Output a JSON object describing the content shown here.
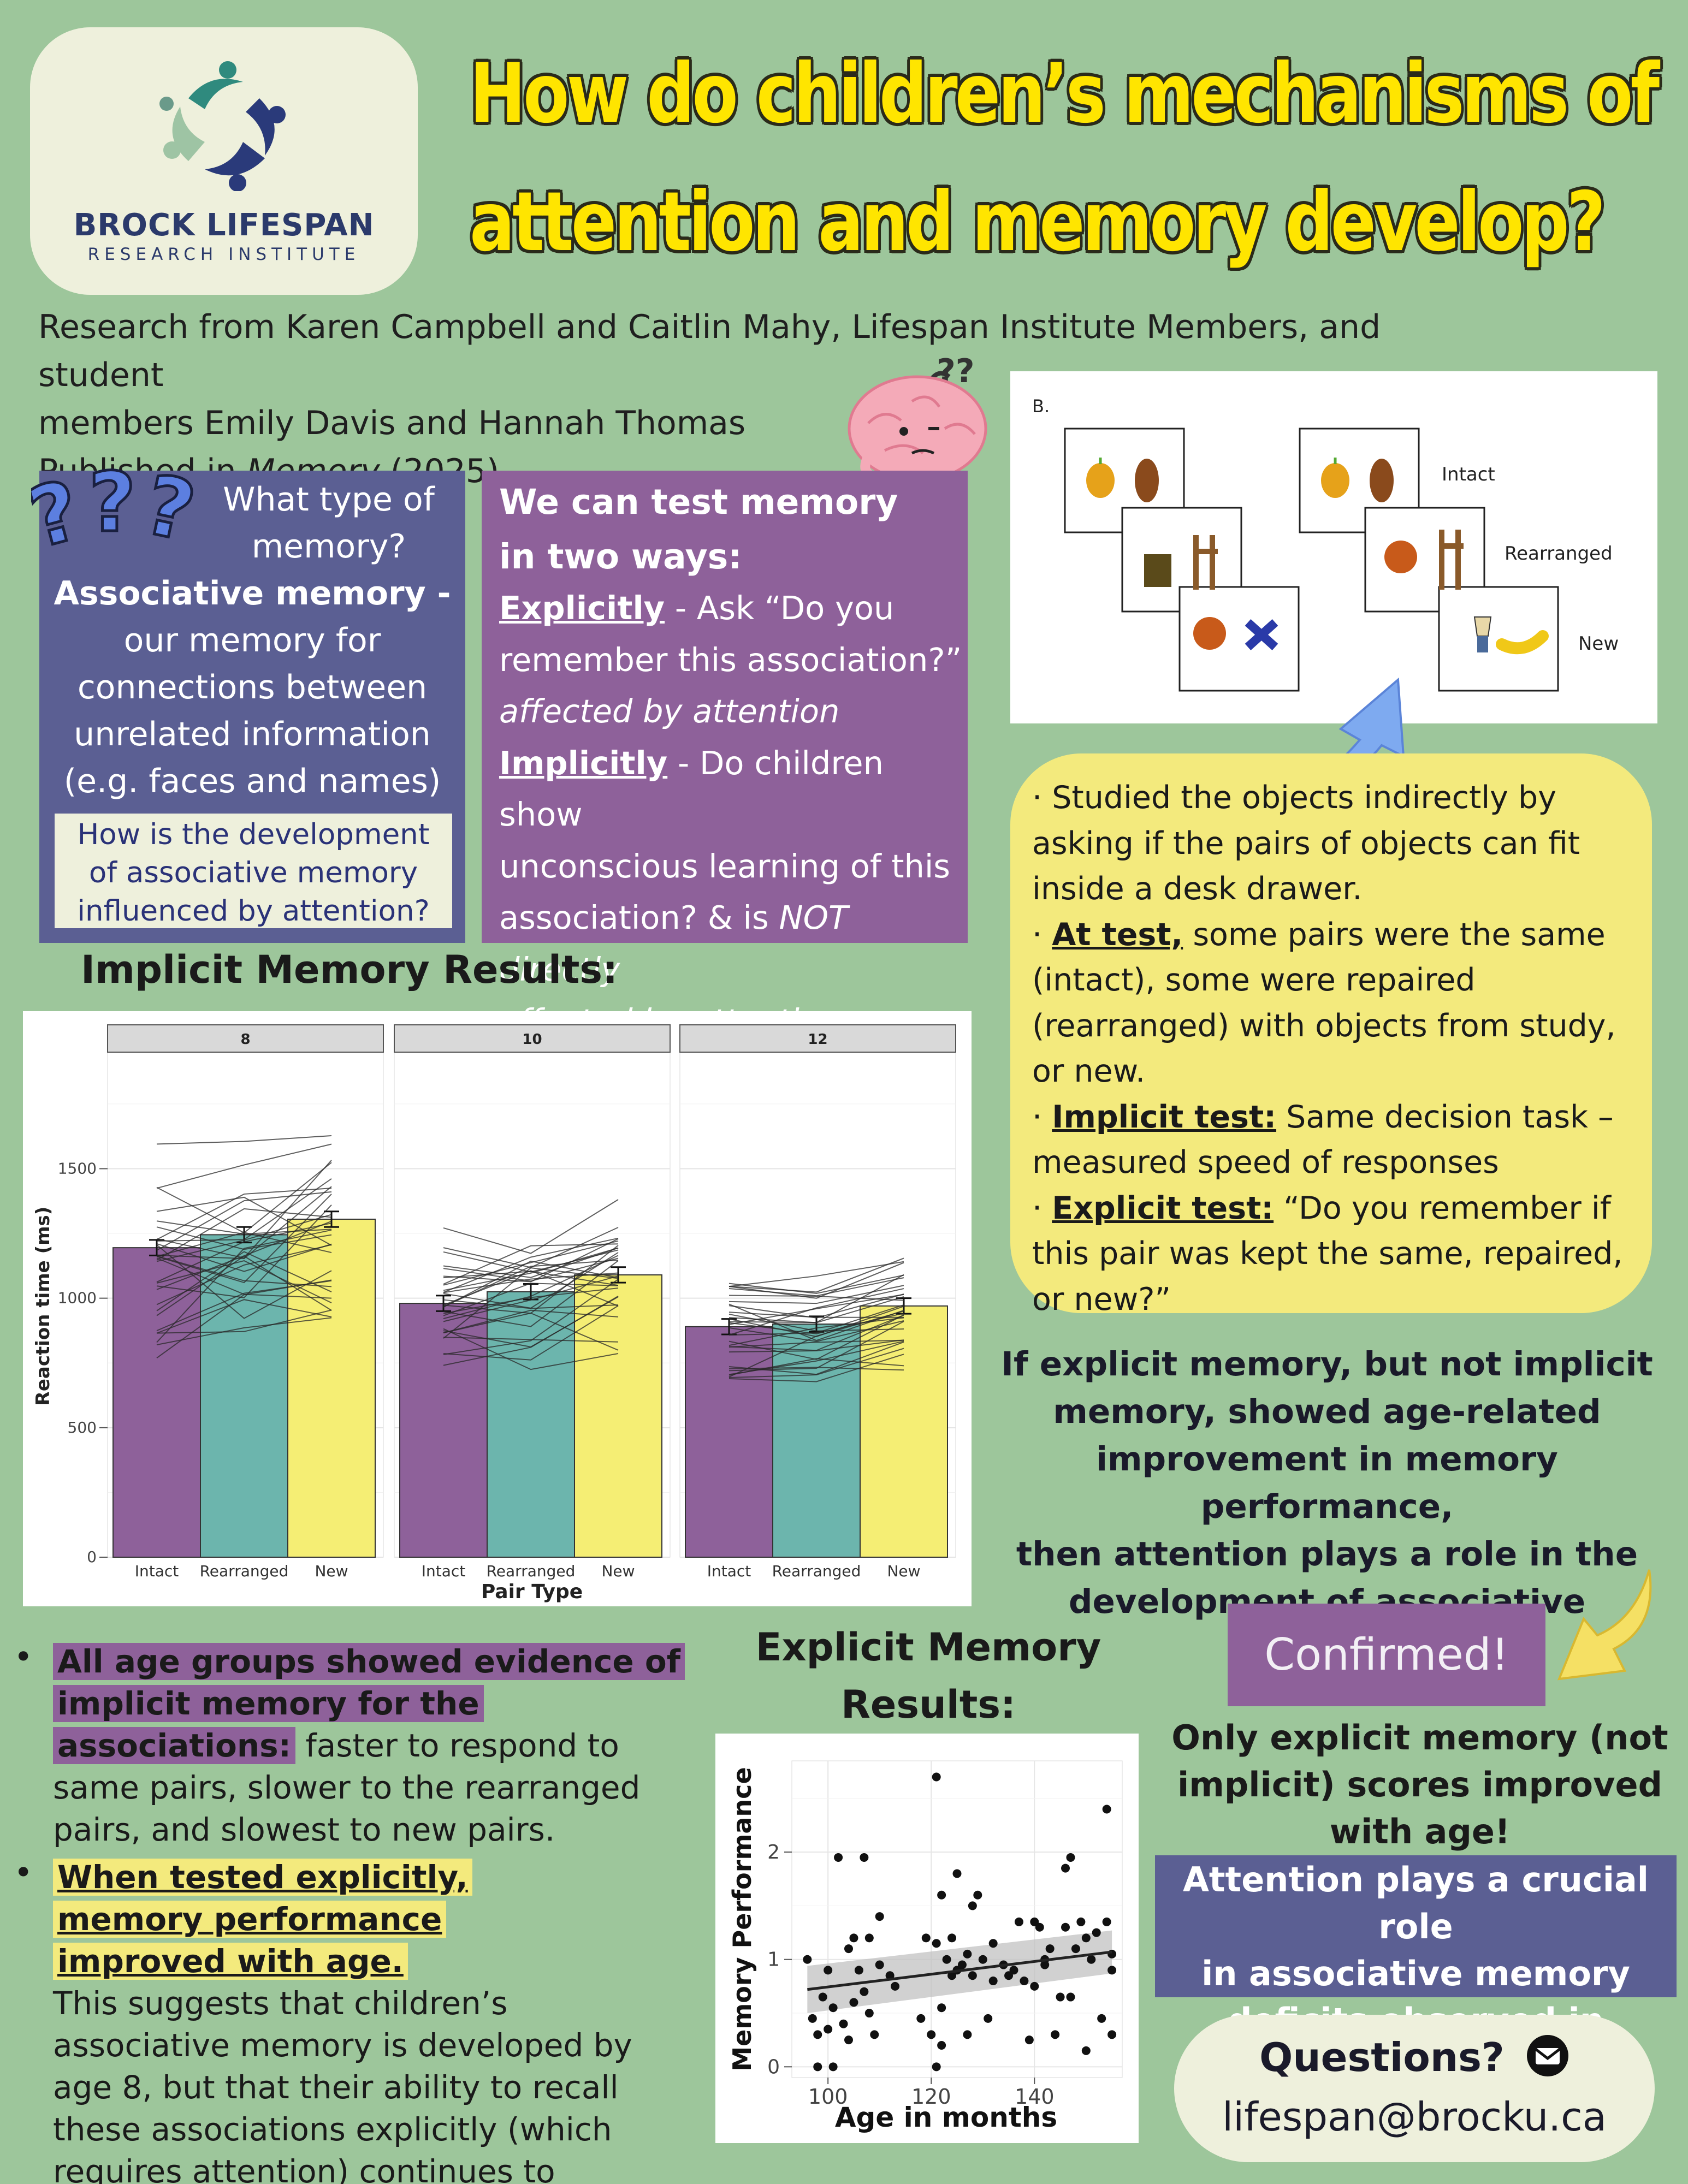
{
  "header": {
    "logo_name": "BROCK LIFESPAN",
    "logo_sub": "RESEARCH INSTITUTE",
    "title_line1": "How do children’s mechanisms of",
    "title_line2": "attention and memory develop?"
  },
  "byline": {
    "line1": "Research from Karen Campbell and Caitlin Mahy, Lifespan Institute Members, and student",
    "line2": "members Emily Davis and Hannah Thomas",
    "published_prefix": "Published in ",
    "journal": "Memory",
    "published_suffix": " (2025)"
  },
  "memory_type_box": {
    "question_line1": "What type of",
    "question_line2": "memory?",
    "term": "Associative memory -",
    "def_line1": "our memory for",
    "def_line2": "connections between",
    "def_line3": "unrelated information",
    "def_line4": "(e.g. faces and names)",
    "inner_q_line1": "How is the development",
    "inner_q_line2": "of associative memory",
    "inner_q_line3": "influenced by attention?"
  },
  "test_box": {
    "heading_line1": "We can test memory",
    "heading_line2": "in two ways:",
    "explicit_label": "Explicitly",
    "explicit_text1": " - Ask “Do you",
    "explicit_text2": "remember this association?”",
    "explicit_note": "affected by attention",
    "implicit_label": "Implicitly",
    "implicit_text1": " - Do children show",
    "implicit_text2": "unconscious learning of this",
    "implicit_text3": "association? & is ",
    "implicit_not": "NOT directly",
    "implicit_note": "affected by attention."
  },
  "experiment_figure": {
    "panel_label": "B.",
    "row_intact": "Intact",
    "row_rearranged": "Rearranged",
    "row_new": "New"
  },
  "method_box": {
    "p1": "· Studied the objects indirectly by asking if the pairs of objects can fit inside a desk drawer.",
    "p2_prefix": "· ",
    "p2_label": "At test,",
    "p2_text": " some pairs were the same (intact), some were repaired (rearranged) with objects from study, or new.",
    "p3_prefix": "· ",
    "p3_label": "Implicit test:",
    "p3_text": " Same decision task – measured speed of responses",
    "p4_prefix": "· ",
    "p4_label": "Explicit test:",
    "p4_text": " “Do you remember if this pair was kept the same, repaired, or new?”"
  },
  "hypothesis": {
    "line1": "If explicit memory, but not implicit",
    "line2": "memory, showed age-related",
    "line3": "improvement in memory performance,",
    "line4": "then attention plays a role in the",
    "line5": "development of associative memory."
  },
  "implicit_heading": "Implicit Memory Results:",
  "explicit_heading_line1": "Explicit Memory",
  "explicit_heading_line2": "Results:",
  "bullets": {
    "b1_highlight": "All age groups showed evidence of implicit memory for the associations:",
    "b1_text": " faster to respond to same pairs, slower to the rearranged pairs, and slowest to new pairs.",
    "b2_highlight": "When tested explicitly, memory performance improved with age.",
    "b2_text": "This suggests that children’s associative memory is developed by age 8, but that their ability to recall these associations explicitly (which requires attention) continues to develop."
  },
  "confirmed": "Confirmed!",
  "only_explicit": {
    "line1": "Only explicit memory (not",
    "line2": "implicit) scores improved",
    "line3": "with age!"
  },
  "attention_box": {
    "line1": "Attention plays a crucial role",
    "line2": "in associative memory",
    "line3": "deficits observed in children"
  },
  "questions": {
    "label": "Questions?",
    "email": "lifespan@brocku.ca"
  },
  "colors": {
    "background": "#9dc69b",
    "title_yellow": "#ffe500",
    "intact": "#8e619a",
    "rearranged": "#6cb5ad",
    "new": "#f5ee74",
    "blue_box": "#5b5f93",
    "purple_box": "#8e619a",
    "yellow_box": "#f3ea7d"
  },
  "chart_data": [
    {
      "type": "bar",
      "xlabel": "Pair Type",
      "ylabel": "Reaction time (ms)",
      "ylim": [
        0,
        1950
      ],
      "yticks": [
        0,
        500,
        1000,
        1500
      ],
      "categories": [
        "Intact",
        "Rearranged",
        "New"
      ],
      "panels": [
        {
          "name": "8",
          "values": [
            1195,
            1245,
            1305
          ]
        },
        {
          "name": "10",
          "values": [
            980,
            1025,
            1090
          ]
        },
        {
          "name": "12",
          "values": [
            890,
            900,
            970
          ]
        }
      ]
    },
    {
      "type": "scatter",
      "xlabel": "Age in months",
      "ylabel": "Memory Performance",
      "xlim": [
        93,
        157
      ],
      "ylim": [
        -0.1,
        2.85
      ],
      "xticks": [
        100,
        120,
        140
      ],
      "yticks": [
        0,
        1,
        2
      ],
      "trend": {
        "x": [
          96,
          155
        ],
        "y": [
          0.72,
          1.07
        ]
      },
      "points": [
        [
          96,
          1.0
        ],
        [
          97,
          0.45
        ],
        [
          98,
          0.3
        ],
        [
          98,
          0
        ],
        [
          99,
          0.65
        ],
        [
          100,
          0.9
        ],
        [
          100,
          0.35
        ],
        [
          101,
          0.55
        ],
        [
          101,
          0
        ],
        [
          102,
          1.95
        ],
        [
          103,
          0.4
        ],
        [
          104,
          1.1
        ],
        [
          104,
          0.25
        ],
        [
          105,
          0.6
        ],
        [
          105,
          1.2
        ],
        [
          106,
          0.9
        ],
        [
          107,
          1.95
        ],
        [
          107,
          0.7
        ],
        [
          108,
          1.2
        ],
        [
          108,
          0.5
        ],
        [
          109,
          0.3
        ],
        [
          110,
          1.4
        ],
        [
          110,
          0.95
        ],
        [
          112,
          0.85
        ],
        [
          113,
          0.75
        ],
        [
          118,
          0.45
        ],
        [
          119,
          1.2
        ],
        [
          120,
          0.3
        ],
        [
          121,
          2.7
        ],
        [
          121,
          1.15
        ],
        [
          121,
          0
        ],
        [
          122,
          0.55
        ],
        [
          122,
          1.6
        ],
        [
          122,
          0.2
        ],
        [
          123,
          1.0
        ],
        [
          124,
          1.2
        ],
        [
          124,
          0.85
        ],
        [
          125,
          1.8
        ],
        [
          125,
          0.9
        ],
        [
          126,
          0.95
        ],
        [
          127,
          1.05
        ],
        [
          127,
          0.3
        ],
        [
          128,
          1.5
        ],
        [
          128,
          0.85
        ],
        [
          129,
          1.6
        ],
        [
          130,
          1.0
        ],
        [
          131,
          0.45
        ],
        [
          132,
          0.8
        ],
        [
          132,
          1.15
        ],
        [
          134,
          0.95
        ],
        [
          135,
          0.85
        ],
        [
          136,
          0.9
        ],
        [
          137,
          1.35
        ],
        [
          138,
          0.8
        ],
        [
          139,
          0.25
        ],
        [
          140,
          1.35
        ],
        [
          140,
          0.75
        ],
        [
          141,
          1.3
        ],
        [
          142,
          1.0
        ],
        [
          142,
          0.95
        ],
        [
          143,
          1.1
        ],
        [
          144,
          0.3
        ],
        [
          145,
          0.65
        ],
        [
          146,
          1.3
        ],
        [
          146,
          1.85
        ],
        [
          147,
          1.95
        ],
        [
          147,
          0.65
        ],
        [
          148,
          1.1
        ],
        [
          149,
          1.35
        ],
        [
          150,
          1.2
        ],
        [
          150,
          0.15
        ],
        [
          151,
          1.0
        ],
        [
          152,
          1.25
        ],
        [
          153,
          0.45
        ],
        [
          154,
          2.4
        ],
        [
          154,
          1.35
        ],
        [
          155,
          0.9
        ],
        [
          155,
          1.05
        ],
        [
          155,
          0.3
        ]
      ]
    }
  ]
}
